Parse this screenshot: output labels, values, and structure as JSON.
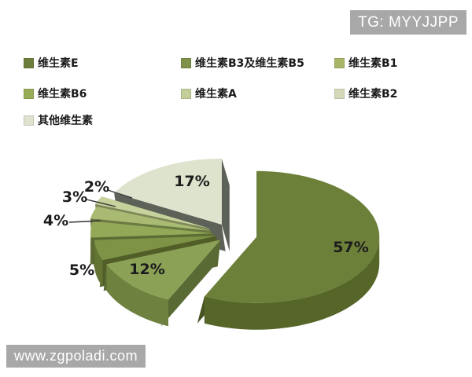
{
  "watermarks": {
    "top_right": "TG: MYYJJPP",
    "bottom_left": "www.zgpoladi.com"
  },
  "legend": {
    "position": "top",
    "items": [
      {
        "label": "维生素E",
        "color": "#6e7f3c"
      },
      {
        "label": "维生素B3及维生素B5",
        "color": "#7f9148"
      },
      {
        "label": "维生素B1",
        "color": "#a9b667"
      },
      {
        "label": "维生素B6",
        "color": "#99ac57"
      },
      {
        "label": "维生素A",
        "color": "#c3cf99"
      },
      {
        "label": "维生素B2",
        "color": "#d6d9b9"
      },
      {
        "label": "其他维生素",
        "color": "#dfe3cf"
      }
    ]
  },
  "chart_data": {
    "type": "pie",
    "style": "3d-exploded",
    "title": "",
    "unit": "%",
    "start_angle_deg": -90,
    "direction": "clockwise",
    "legend_position": "top",
    "slices": [
      {
        "label": "维生素E",
        "value": 57,
        "color": "#6d8039",
        "side": "#566629"
      },
      {
        "label": "维生素B3及维生素B5",
        "value": 12,
        "color": "#8aa156",
        "side": "#6e813f"
      },
      {
        "label": "维生素B1",
        "value": 5,
        "color": "#7e9346",
        "side": "#637331"
      },
      {
        "label": "维生素B6",
        "value": 4,
        "color": "#93a957",
        "side": "#71833f"
      },
      {
        "label": "维生素A",
        "value": 3,
        "color": "#a9bb72",
        "side": "#839350"
      },
      {
        "label": "维生素B2",
        "value": 2,
        "color": "#c6d29c",
        "side": "#9aa56d"
      },
      {
        "label": "其他维生素",
        "value": 17,
        "color": "#dde3cc",
        "side": "#72776c"
      }
    ]
  }
}
